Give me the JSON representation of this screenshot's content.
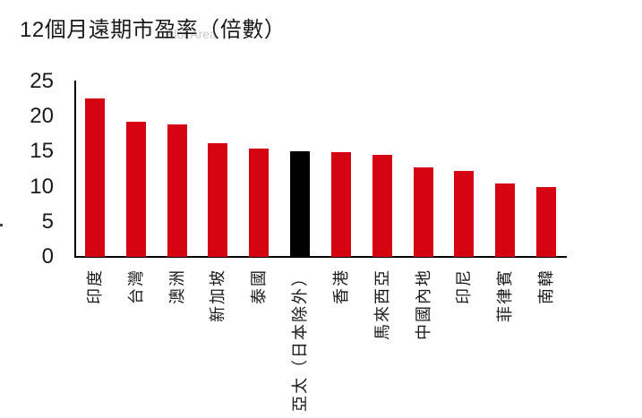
{
  "title": "12個月遠期市盈率（倍數）",
  "watermark": "Plot Area",
  "text_color": "#1a1a1a",
  "chart_data": {
    "type": "bar",
    "title": "12個月遠期市盈率（倍數）",
    "categories": [
      "印度",
      "台灣",
      "澳洲",
      "新加坡",
      "泰國",
      "亞太（日本除外）",
      "香港",
      "馬來西亞",
      "中國內地",
      "印尼",
      "菲律賓",
      "南韓"
    ],
    "values": [
      22.6,
      19.2,
      18.9,
      16.2,
      15.4,
      15.0,
      14.9,
      14.5,
      12.7,
      12.3,
      10.4,
      10.0
    ],
    "highlight_index": 5,
    "bar_color": "#D40511",
    "highlight_color": "#000000",
    "axis_color": "#000000",
    "yticks": [
      0,
      5,
      10,
      15,
      20,
      25
    ],
    "ylim": [
      0,
      25
    ],
    "xlabel": "",
    "ylabel": "",
    "legend": "none",
    "grid": false
  }
}
